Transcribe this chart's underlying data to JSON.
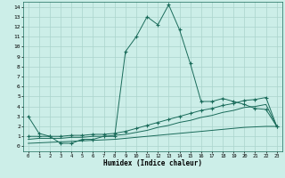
{
  "xlabel": "Humidex (Indice chaleur)",
  "bg_color": "#cceee8",
  "grid_color": "#aad4cc",
  "line_color": "#1a6b5a",
  "x_ticks": [
    0,
    1,
    2,
    3,
    4,
    5,
    6,
    7,
    8,
    9,
    10,
    11,
    12,
    13,
    14,
    15,
    16,
    17,
    18,
    19,
    20,
    21,
    22,
    23
  ],
  "y_ticks": [
    0,
    1,
    2,
    3,
    4,
    5,
    6,
    7,
    8,
    9,
    10,
    11,
    12,
    13,
    14
  ],
  "xlim": [
    -0.5,
    23.5
  ],
  "ylim": [
    -0.5,
    14.5
  ],
  "series1_x": [
    0,
    1,
    2,
    3,
    4,
    5,
    6,
    7,
    8,
    9,
    10,
    11,
    12,
    13,
    14,
    15,
    16,
    17,
    18,
    19,
    20,
    21,
    22,
    23
  ],
  "series1_y": [
    3.0,
    1.3,
    1.0,
    0.3,
    0.3,
    0.7,
    0.7,
    1.0,
    1.0,
    9.5,
    11.0,
    13.0,
    12.2,
    14.2,
    11.7,
    8.3,
    4.5,
    4.5,
    4.8,
    4.5,
    4.2,
    3.8,
    3.7,
    2.0
  ],
  "series2_x": [
    0,
    1,
    2,
    3,
    4,
    5,
    6,
    7,
    8,
    9,
    10,
    11,
    12,
    13,
    14,
    15,
    16,
    17,
    18,
    19,
    20,
    21,
    22,
    23
  ],
  "series2_y": [
    1.0,
    1.0,
    1.0,
    1.0,
    1.1,
    1.1,
    1.2,
    1.2,
    1.3,
    1.5,
    1.8,
    2.1,
    2.4,
    2.7,
    3.0,
    3.3,
    3.6,
    3.8,
    4.1,
    4.3,
    4.6,
    4.7,
    4.9,
    2.0
  ],
  "series3_x": [
    0,
    1,
    2,
    3,
    4,
    5,
    6,
    7,
    8,
    9,
    10,
    11,
    12,
    13,
    14,
    15,
    16,
    17,
    18,
    19,
    20,
    21,
    22,
    23
  ],
  "series3_y": [
    0.7,
    0.8,
    0.8,
    0.8,
    0.9,
    0.9,
    1.0,
    1.0,
    1.1,
    1.2,
    1.4,
    1.6,
    1.9,
    2.1,
    2.4,
    2.6,
    2.9,
    3.1,
    3.4,
    3.6,
    3.9,
    4.0,
    4.2,
    2.0
  ],
  "series4_x": [
    0,
    1,
    2,
    3,
    4,
    5,
    6,
    7,
    8,
    9,
    10,
    11,
    12,
    13,
    14,
    15,
    16,
    17,
    18,
    19,
    20,
    21,
    22,
    23
  ],
  "series4_y": [
    0.3,
    0.35,
    0.4,
    0.45,
    0.5,
    0.55,
    0.6,
    0.65,
    0.7,
    0.8,
    0.9,
    1.0,
    1.1,
    1.2,
    1.3,
    1.4,
    1.5,
    1.6,
    1.7,
    1.8,
    1.9,
    1.95,
    2.0,
    2.0
  ]
}
